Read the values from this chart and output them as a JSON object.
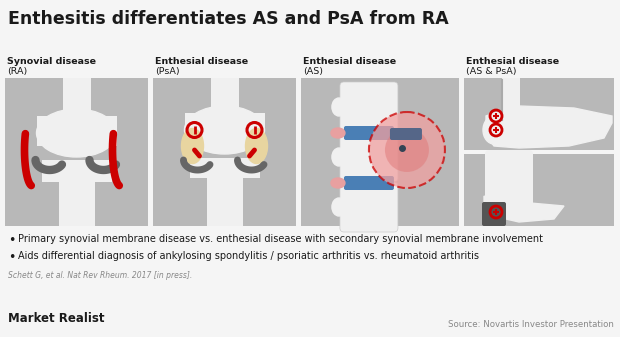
{
  "title": "Enthesitis differentiates AS and PsA from RA",
  "background_color": "#f5f5f5",
  "bullet1": "Primary synovial membrane disease vs. enthesial disease with secondary synovial membrane involvement",
  "bullet2": "Aids differential diagnosis of ankylosing spondylitis / psoriatic arthritis vs. rheumatoid arthritis",
  "citation": "Schett G, et al. Nat Rev Rheum. 2017 [in press].",
  "source": "Source: Novartis Investor Presentation",
  "watermark": "Market Realist",
  "panel_labels_line1": [
    "Synovial disease",
    "Enthesial disease",
    "Enthesial disease",
    "Enthesial disease"
  ],
  "panel_labels_line2": [
    "(RA)",
    "(PsA)",
    "(AS)",
    "(AS & PsA)"
  ],
  "title_color": "#1a1a1a",
  "label_color": "#1a1a1a",
  "bullet_color": "#1a1a1a",
  "source_color": "#888888",
  "citation_color": "#888888",
  "watermark_color": "#1a1a1a",
  "red_color": "#cc0000",
  "panel_gray": "#b8b8b8",
  "bone_white": "#f0f0f0",
  "meniscus_gray": "#666666",
  "disc_blue": "#4a7fb5",
  "enthesis_tan": "#e8d5a0",
  "infl_pink": "#f0a0a0"
}
